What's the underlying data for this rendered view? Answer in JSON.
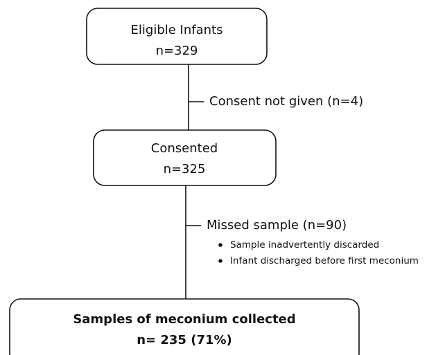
{
  "nodes": [
    {
      "lines": [
        "Eligible Infants",
        "n=329"
      ]
    },
    {
      "lines": [
        "Consented",
        "n=325"
      ]
    },
    {
      "lines": [
        "Samples of meconium collected",
        "n= 235 (71%)"
      ]
    }
  ],
  "exclusions": [
    {
      "label": "Consent not given (n=4)",
      "bullets": []
    },
    {
      "label": "Missed sample (n=90)",
      "bullets": [
        "Sample inadvertently discarded",
        "Infant discharged before first meconium"
      ]
    }
  ]
}
